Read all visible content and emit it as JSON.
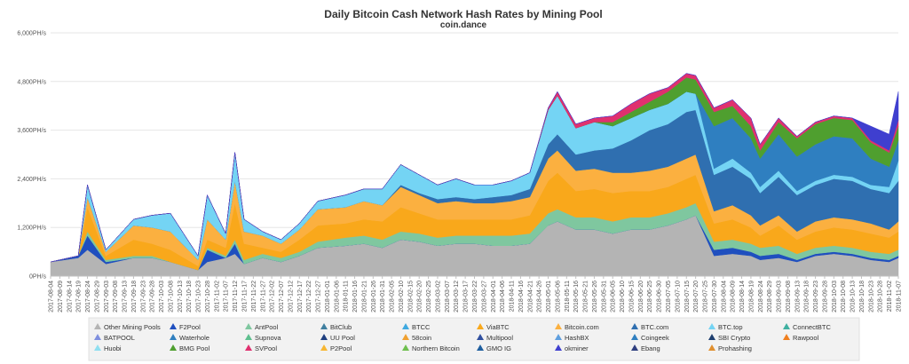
{
  "chart_data": {
    "type": "area",
    "stacked": true,
    "title": "Daily Bitcoin Cash Network Hash Rates by Mining Pool",
    "subtitle": "coin.dance",
    "xlabel": "",
    "ylabel": "",
    "ylim": [
      0,
      6000
    ],
    "yticks": [
      0,
      1200,
      2400,
      3600,
      4800,
      6000
    ],
    "ytick_labels": [
      "0PH/s",
      "1,200PH/s",
      "2,400PH/s",
      "3,600PH/s",
      "4,800PH/s",
      "6,000PH/s"
    ],
    "x_start": "2017-08-04",
    "x_end": "2018-11-07",
    "x_tick_step_days": 5,
    "legend_position": "bottom",
    "legend": [
      {
        "name": "Other Mining Pools",
        "color": "#b4b4b4"
      },
      {
        "name": "F2Pool",
        "color": "#1f4fbf"
      },
      {
        "name": "AntPool",
        "color": "#7fc79f"
      },
      {
        "name": "BitClub",
        "color": "#3f7f9f"
      },
      {
        "name": "BTCC",
        "color": "#3fa9e0"
      },
      {
        "name": "ViaBTC",
        "color": "#f9a81b"
      },
      {
        "name": "Bitcoin.com",
        "color": "#fbb040"
      },
      {
        "name": "BTC.com",
        "color": "#2f6fb0"
      },
      {
        "name": "BTC.top",
        "color": "#74d4f4"
      },
      {
        "name": "ConnectBTC",
        "color": "#3fb0a0"
      },
      {
        "name": "BATPOOL",
        "color": "#7f8fdf"
      },
      {
        "name": "Waterhole",
        "color": "#2f7fbf"
      },
      {
        "name": "Supnova",
        "color": "#5fbf8f"
      },
      {
        "name": "UU Pool",
        "color": "#1f3f7f"
      },
      {
        "name": "58coin",
        "color": "#f0a030"
      },
      {
        "name": "Multipool",
        "color": "#2f4f9f"
      },
      {
        "name": "HashBX",
        "color": "#5f9fdf"
      },
      {
        "name": "Coingeek",
        "color": "#2f7fc0"
      },
      {
        "name": "SBI Crypto",
        "color": "#1f3f6f"
      },
      {
        "name": "Rawpool",
        "color": "#f07f1f"
      },
      {
        "name": "Huobi",
        "color": "#8fdff0"
      },
      {
        "name": "BMG Pool",
        "color": "#4f9f2f"
      },
      {
        "name": "SVPool",
        "color": "#e0306f"
      },
      {
        "name": "P2Pool",
        "color": "#f7b733"
      },
      {
        "name": "Northern Bitcoin",
        "color": "#6fbf4f"
      },
      {
        "name": "GMO IG",
        "color": "#1f5f9f"
      },
      {
        "name": "okminer",
        "color": "#3f3fcf"
      },
      {
        "name": "Ebang",
        "color": "#2f3f7f"
      },
      {
        "name": "Prohashing",
        "color": "#e08f2f"
      }
    ],
    "x_dates": [
      "2017-08-04",
      "2017-08-19",
      "2017-08-24",
      "2017-09-03",
      "2017-09-18",
      "2017-09-28",
      "2017-10-08",
      "2017-10-23",
      "2017-10-28",
      "2017-11-07",
      "2017-11-12",
      "2017-11-17",
      "2017-11-27",
      "2017-12-07",
      "2017-12-17",
      "2017-12-27",
      "2018-01-11",
      "2018-01-21",
      "2018-01-31",
      "2018-02-10",
      "2018-02-20",
      "2018-03-02",
      "2018-03-12",
      "2018-03-22",
      "2018-04-01",
      "2018-04-11",
      "2018-04-21",
      "2018-05-01",
      "2018-05-06",
      "2018-05-16",
      "2018-05-26",
      "2018-06-05",
      "2018-06-15",
      "2018-06-25",
      "2018-07-05",
      "2018-07-15",
      "2018-07-20",
      "2018-07-30",
      "2018-08-09",
      "2018-08-19",
      "2018-08-24",
      "2018-09-03",
      "2018-09-13",
      "2018-09-23",
      "2018-10-03",
      "2018-10-13",
      "2018-10-23",
      "2018-11-02",
      "2018-11-07"
    ],
    "series": [
      {
        "name": "Other Mining Pools",
        "values": [
          350,
          450,
          650,
          300,
          450,
          450,
          350,
          150,
          350,
          450,
          550,
          300,
          450,
          350,
          500,
          700,
          750,
          800,
          700,
          900,
          850,
          750,
          800,
          800,
          750,
          750,
          800,
          1250,
          1350,
          1150,
          1150,
          1050,
          1150,
          1150,
          1250,
          1400,
          1500,
          500,
          550,
          500,
          400,
          450,
          350,
          500,
          550,
          500,
          400,
          350,
          450
        ]
      },
      {
        "name": "F2Pool",
        "values": [
          0,
          50,
          350,
          50,
          0,
          0,
          0,
          0,
          300,
          0,
          250,
          0,
          0,
          0,
          0,
          0,
          0,
          0,
          0,
          0,
          0,
          0,
          0,
          0,
          0,
          0,
          0,
          0,
          0,
          0,
          0,
          0,
          0,
          0,
          0,
          0,
          0,
          150,
          150,
          100,
          100,
          100,
          50,
          50,
          50,
          50,
          50,
          50,
          50
        ]
      },
      {
        "name": "AntPool",
        "values": [
          0,
          0,
          100,
          50,
          50,
          50,
          0,
          0,
          50,
          50,
          100,
          100,
          100,
          100,
          100,
          150,
          200,
          200,
          200,
          200,
          200,
          200,
          200,
          200,
          250,
          250,
          250,
          300,
          300,
          300,
          300,
          300,
          300,
          300,
          300,
          300,
          300,
          200,
          200,
          200,
          200,
          200,
          150,
          150,
          150,
          150,
          150,
          150,
          150
        ]
      },
      {
        "name": "ViaBTC",
        "values": [
          0,
          0,
          600,
          100,
          400,
          300,
          300,
          100,
          200,
          200,
          900,
          400,
          150,
          150,
          300,
          400,
          350,
          400,
          450,
          600,
          500,
          450,
          400,
          400,
          400,
          400,
          450,
          800,
          900,
          650,
          700,
          700,
          650,
          650,
          650,
          700,
          700,
          450,
          500,
          400,
          300,
          500,
          350,
          400,
          450,
          450,
          450,
          400,
          450
        ]
      },
      {
        "name": "Bitcoin.com",
        "values": [
          0,
          0,
          250,
          100,
          350,
          400,
          450,
          150,
          500,
          200,
          550,
          300,
          300,
          200,
          250,
          400,
          400,
          450,
          400,
          500,
          450,
          400,
          450,
          400,
          400,
          450,
          450,
          550,
          550,
          500,
          500,
          500,
          450,
          500,
          500,
          500,
          500,
          300,
          350,
          300,
          250,
          250,
          200,
          250,
          250,
          250,
          250,
          200,
          250
        ]
      },
      {
        "name": "BTC.com",
        "values": [
          0,
          0,
          0,
          0,
          0,
          0,
          0,
          0,
          0,
          0,
          0,
          0,
          0,
          0,
          0,
          0,
          0,
          0,
          0,
          50,
          50,
          100,
          100,
          100,
          150,
          150,
          200,
          350,
          400,
          400,
          450,
          600,
          800,
          1000,
          1050,
          1150,
          1100,
          900,
          950,
          900,
          800,
          950,
          900,
          900,
          950,
          950,
          850,
          900,
          1000
        ]
      },
      {
        "name": "BTC.top",
        "values": [
          0,
          0,
          300,
          50,
          150,
          300,
          450,
          100,
          600,
          150,
          700,
          300,
          100,
          100,
          150,
          200,
          300,
          300,
          400,
          500,
          450,
          350,
          450,
          350,
          300,
          350,
          400,
          850,
          950,
          650,
          700,
          550,
          550,
          500,
          500,
          500,
          400,
          150,
          200,
          150,
          150,
          150,
          100,
          100,
          100,
          100,
          100,
          150,
          500
        ]
      },
      {
        "name": "Coingeek",
        "values": [
          0,
          0,
          0,
          0,
          0,
          0,
          0,
          0,
          0,
          0,
          0,
          0,
          0,
          0,
          0,
          0,
          0,
          0,
          0,
          0,
          0,
          0,
          0,
          0,
          0,
          0,
          0,
          0,
          0,
          0,
          0,
          0,
          0,
          0,
          0,
          0,
          0,
          1050,
          1000,
          850,
          700,
          900,
          850,
          900,
          950,
          950,
          650,
          500,
          500
        ]
      },
      {
        "name": "BMG Pool",
        "values": [
          0,
          0,
          0,
          0,
          0,
          0,
          0,
          0,
          0,
          0,
          0,
          0,
          0,
          0,
          0,
          0,
          0,
          0,
          0,
          0,
          0,
          0,
          0,
          0,
          0,
          0,
          0,
          0,
          0,
          0,
          0,
          100,
          150,
          200,
          300,
          350,
          350,
          350,
          300,
          300,
          200,
          300,
          450,
          500,
          450,
          450,
          400,
          350,
          350
        ]
      },
      {
        "name": "SVPool",
        "values": [
          0,
          0,
          0,
          0,
          0,
          0,
          0,
          0,
          0,
          0,
          0,
          0,
          0,
          0,
          0,
          0,
          0,
          0,
          0,
          0,
          0,
          0,
          0,
          0,
          0,
          0,
          0,
          50,
          100,
          100,
          100,
          150,
          200,
          200,
          100,
          100,
          100,
          100,
          150,
          200,
          150,
          100,
          50,
          50,
          50,
          50,
          50,
          50,
          150
        ]
      },
      {
        "name": "okminer",
        "values": [
          0,
          0,
          0,
          0,
          0,
          0,
          0,
          0,
          0,
          0,
          0,
          0,
          0,
          0,
          0,
          0,
          0,
          0,
          0,
          0,
          0,
          0,
          0,
          0,
          0,
          0,
          0,
          0,
          0,
          0,
          0,
          0,
          0,
          0,
          0,
          0,
          0,
          0,
          0,
          0,
          0,
          0,
          0,
          0,
          0,
          0,
          350,
          400,
          700
        ]
      }
    ]
  }
}
